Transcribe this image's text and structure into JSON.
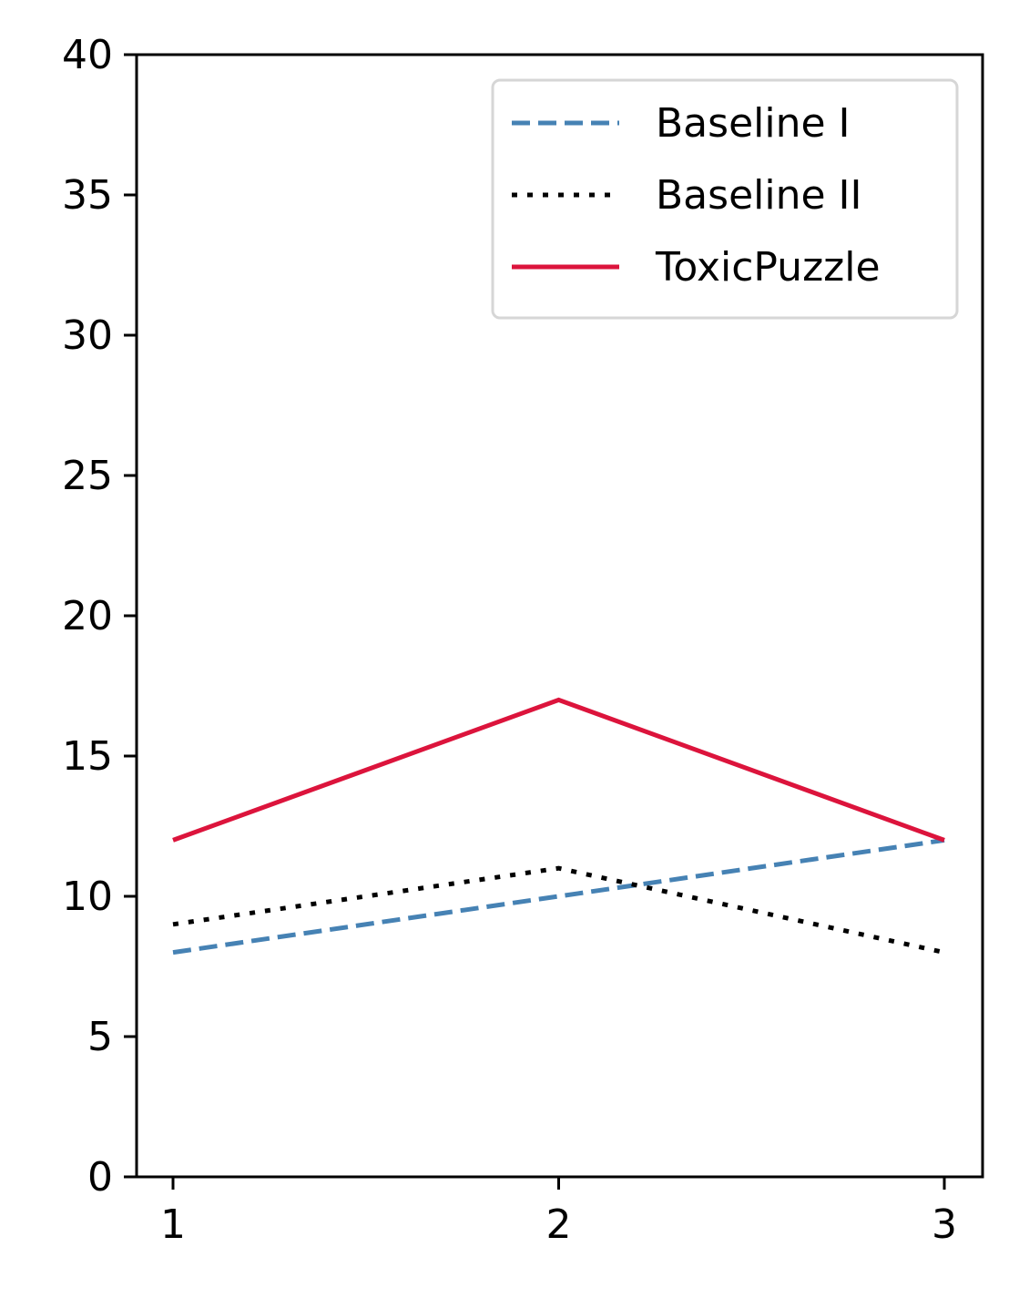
{
  "chart_data": {
    "type": "line",
    "title": "",
    "xlabel": "",
    "ylabel": "",
    "x": [
      1,
      2,
      3
    ],
    "x_tick_labels": [
      "1",
      "2",
      "3"
    ],
    "ylim": [
      0,
      40
    ],
    "y_ticks": [
      0,
      5,
      10,
      15,
      20,
      25,
      30,
      35,
      40
    ],
    "y_tick_labels": [
      "0",
      "5",
      "10",
      "15",
      "20",
      "25",
      "30",
      "35",
      "40"
    ],
    "grid": false,
    "legend_position": "top-right",
    "series": [
      {
        "name": "Baseline I",
        "values": [
          8,
          10,
          12
        ],
        "color": "#4682b4",
        "style": "dashed"
      },
      {
        "name": "Baseline II",
        "values": [
          9,
          11,
          8
        ],
        "color": "#000000",
        "style": "dotted"
      },
      {
        "name": "ToxicPuzzle",
        "values": [
          12,
          17,
          12
        ],
        "color": "#dc143c",
        "style": "solid"
      }
    ]
  }
}
